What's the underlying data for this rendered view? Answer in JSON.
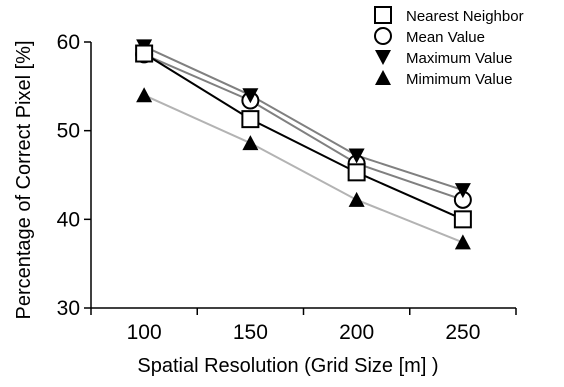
{
  "chart_data": {
    "type": "line",
    "title": "",
    "xlabel": "Spatial Resolution (Grid Size [m] )",
    "ylabel": "Percentage of Correct Pixel [%]",
    "x": [
      100,
      150,
      200,
      250
    ],
    "xlim": [
      75,
      275
    ],
    "ylim": [
      30,
      60
    ],
    "yticks": [
      30,
      40,
      50,
      60
    ],
    "grid": false,
    "legend_position": "top-right",
    "series": [
      {
        "name": "Nearest Neighbor",
        "values": [
          58.7,
          51.3,
          45.3,
          40.0
        ],
        "marker": "square-open",
        "color": "#000000"
      },
      {
        "name": "Mean Value",
        "values": [
          58.6,
          53.4,
          46.3,
          42.2
        ],
        "marker": "circle-open",
        "color": "#808080"
      },
      {
        "name": "Maximum Value",
        "values": [
          59.5,
          54.0,
          47.2,
          43.3
        ],
        "marker": "triangle-down-filled",
        "color": "#808080"
      },
      {
        "name": "Mimimum Value",
        "values": [
          54.0,
          48.6,
          42.2,
          37.4
        ],
        "marker": "triangle-up-filled",
        "color": "#b3b3b3"
      }
    ]
  }
}
